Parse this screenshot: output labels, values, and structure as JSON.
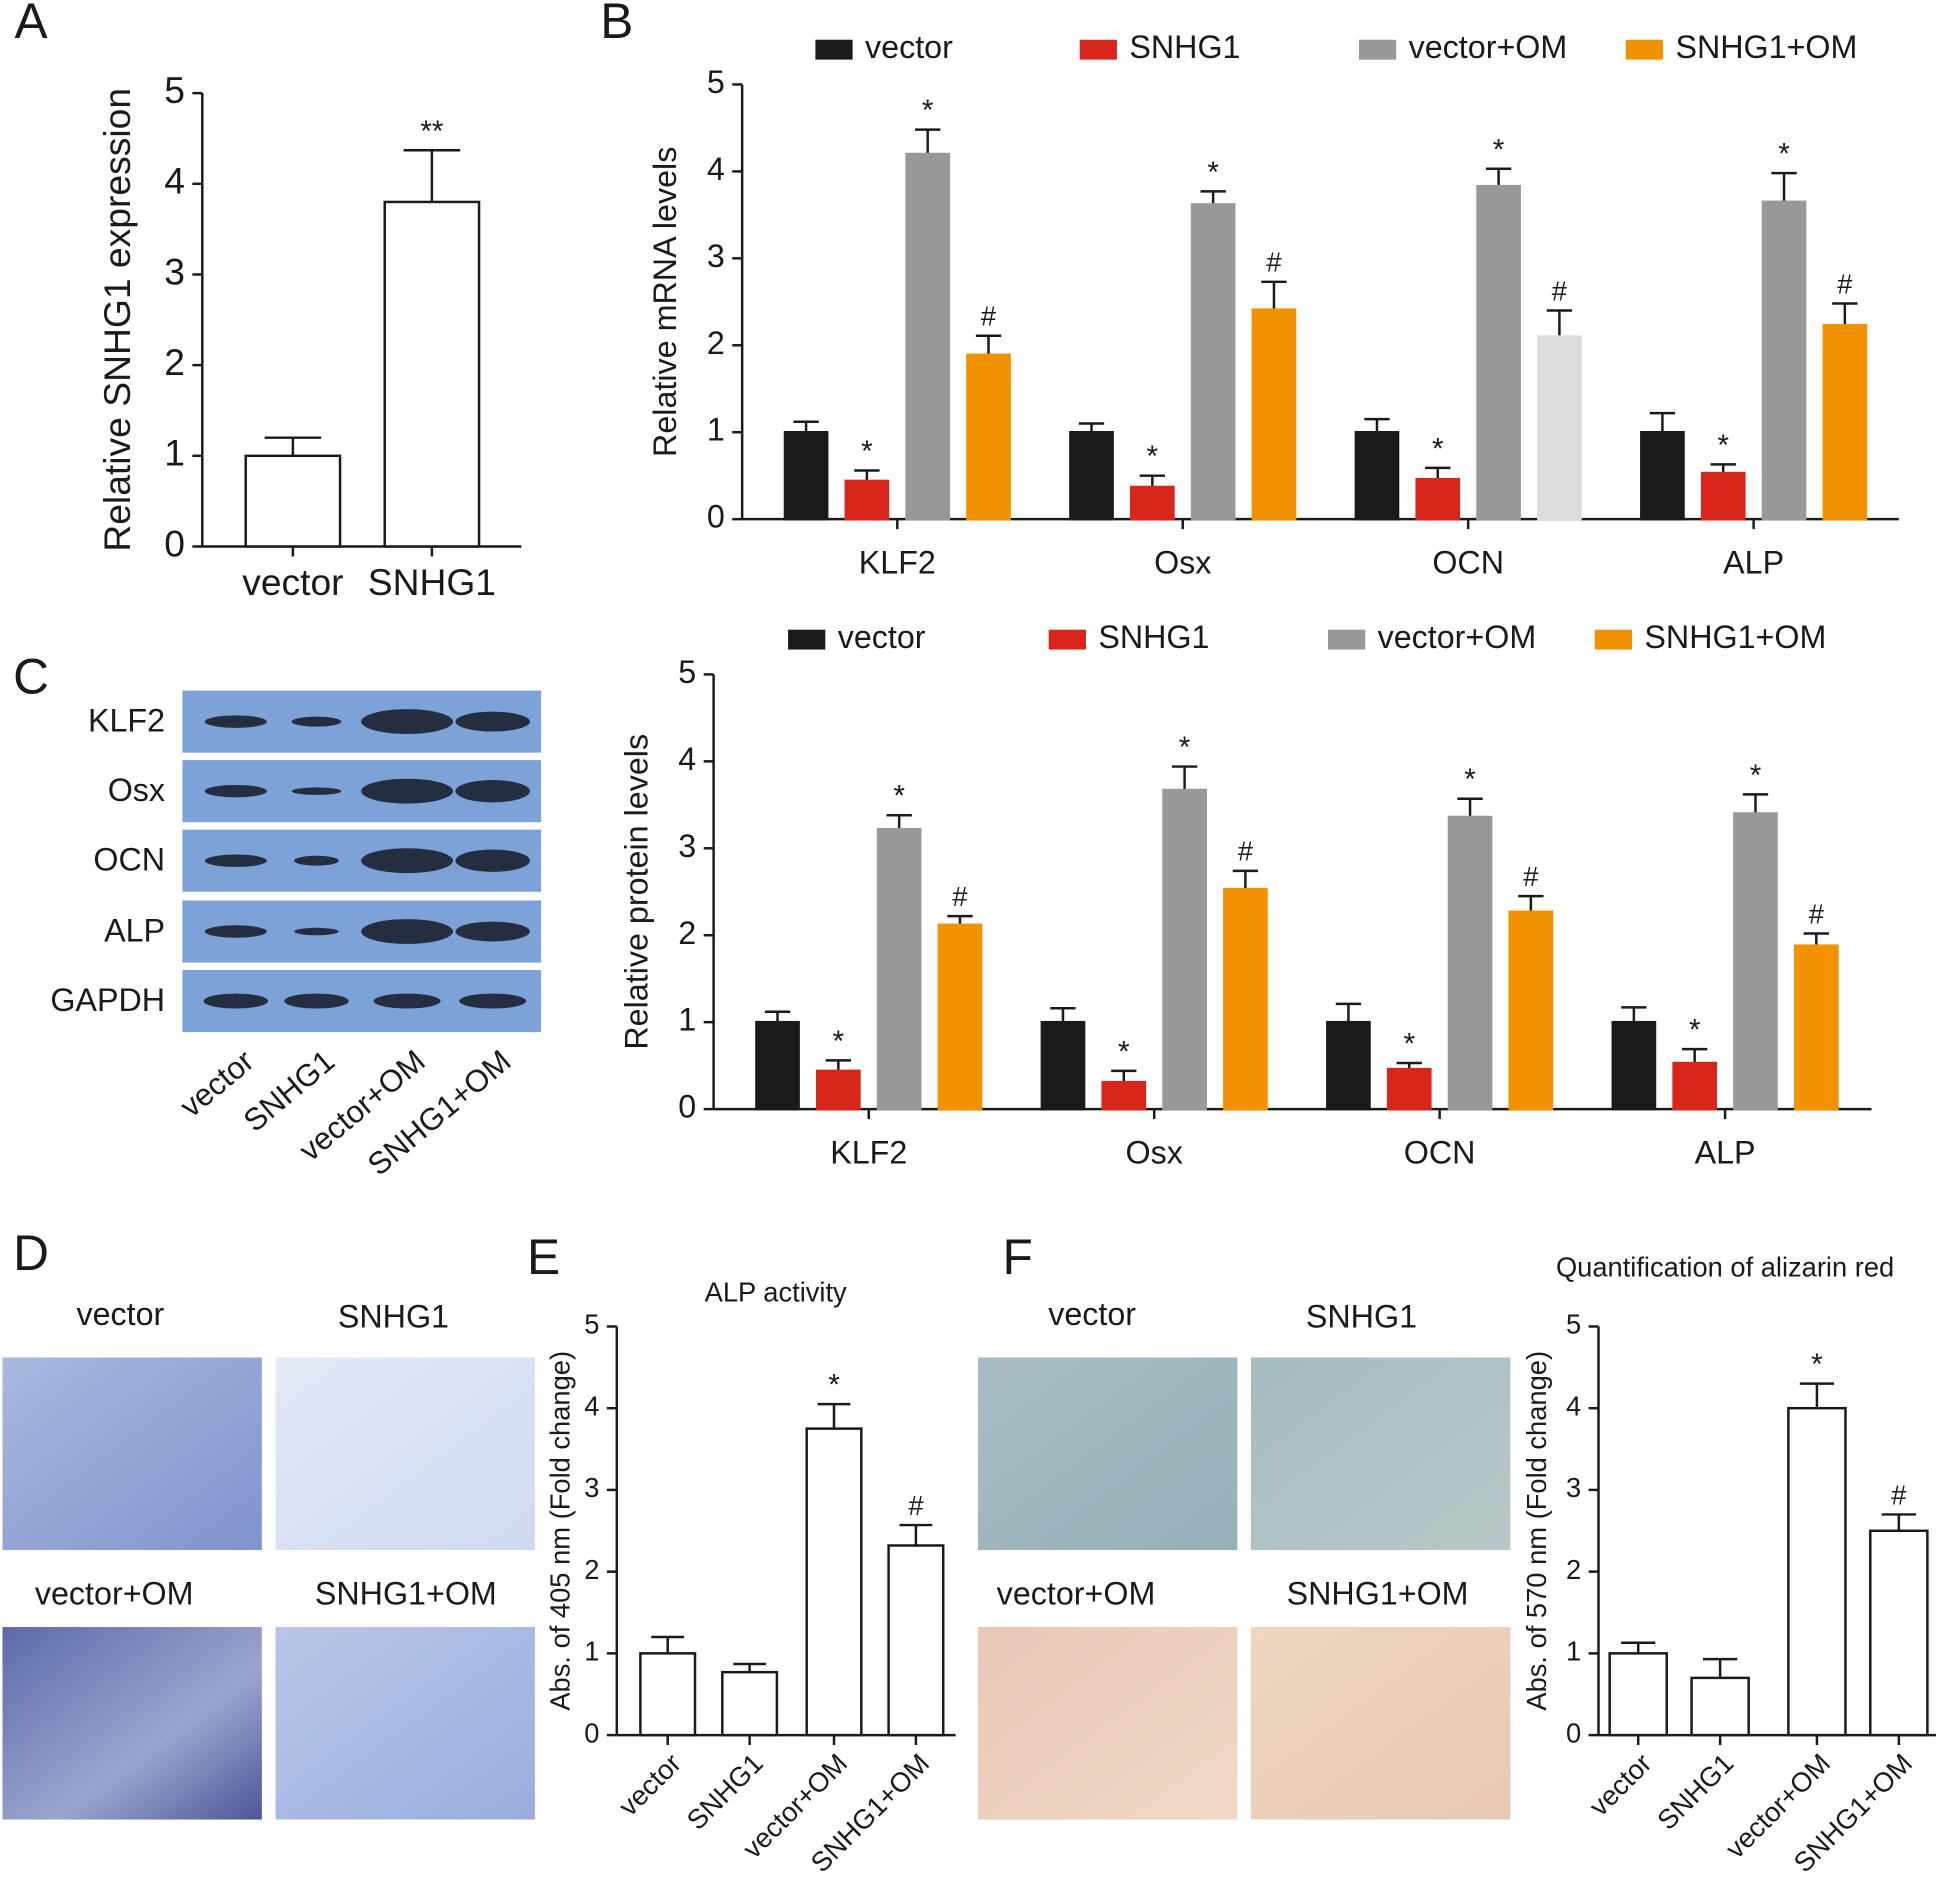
{
  "panel_labels": [
    "A",
    "B",
    "C",
    "D",
    "E",
    "F"
  ],
  "blot": {
    "rows": [
      "KLF2",
      "Osx",
      "OCN",
      "ALP",
      "GAPDH"
    ],
    "lanes": [
      "vector",
      "SNHG1",
      "vector+OM",
      "SNHG1+OM"
    ]
  },
  "alp_staining": {
    "labels": [
      "vector",
      "SNHG1",
      "vector+OM",
      "SNHG1+OM"
    ]
  },
  "alizarin_staining": {
    "labels": [
      "vector",
      "SNHG1",
      "vector+OM",
      "SNHG1+OM"
    ]
  },
  "chart_data": [
    {
      "type": "bar",
      "y_label": "Relative SNHG1 expression",
      "categories": [
        "vector",
        "SNHG1"
      ],
      "values": [
        1.0,
        3.8
      ],
      "errors": [
        0.2,
        0.57
      ],
      "annotations": [
        null,
        "**"
      ],
      "color": "#ffffff",
      "ylim": [
        0,
        5
      ],
      "yticks": [
        0,
        1,
        2,
        3,
        4,
        5
      ]
    },
    {
      "type": "grouped_bar",
      "y_label": "Relative mRNA levels",
      "categories": [
        "KLF2",
        "Osx",
        "OCN",
        "ALP"
      ],
      "series": [
        {
          "name": "vector",
          "color": "#1a1a1a",
          "values": [
            1.0,
            1.0,
            1.0,
            1.0
          ],
          "errors": [
            0.12,
            0.1,
            0.15,
            0.22
          ],
          "annotations": [
            null,
            null,
            null,
            null
          ]
        },
        {
          "name": "SNHG1",
          "color": "#d9261c",
          "values": [
            0.44,
            0.37,
            0.46,
            0.53
          ],
          "errors": [
            0.12,
            0.13,
            0.13,
            0.1
          ],
          "annotations": [
            "*",
            "*",
            "*",
            "*"
          ]
        },
        {
          "name": "vector+OM",
          "color": "#999999",
          "values": [
            4.2,
            3.62,
            3.83,
            3.65
          ],
          "errors": [
            0.28,
            0.15,
            0.2,
            0.33
          ],
          "annotations": [
            "*",
            "*",
            "*",
            "*"
          ]
        },
        {
          "name": "SNHG1+OM",
          "color": "#f39200",
          "colors": [
            "#f39200",
            "#f39200",
            "#dcdcdc",
            "#f39200"
          ],
          "values": [
            1.89,
            2.41,
            2.1,
            2.23
          ],
          "errors": [
            0.22,
            0.32,
            0.3,
            0.25
          ],
          "annotations": [
            "#",
            "#",
            "#",
            "#"
          ]
        }
      ],
      "ylim": [
        0,
        5
      ],
      "yticks": [
        0,
        1,
        2,
        3,
        4,
        5
      ],
      "legend": "top"
    },
    {
      "type": "grouped_bar",
      "y_label": "Relative protein levels",
      "categories": [
        "KLF2",
        "Osx",
        "OCN",
        "ALP"
      ],
      "series": [
        {
          "name": "vector",
          "color": "#1a1a1a",
          "values": [
            1.0,
            1.0,
            1.0,
            1.0
          ],
          "errors": [
            0.12,
            0.16,
            0.21,
            0.17
          ],
          "annotations": [
            null,
            null,
            null,
            null
          ]
        },
        {
          "name": "SNHG1",
          "color": "#d9261c",
          "values": [
            0.44,
            0.31,
            0.46,
            0.53
          ],
          "errors": [
            0.12,
            0.13,
            0.07,
            0.16
          ],
          "annotations": [
            "*",
            "*",
            "*",
            "*"
          ]
        },
        {
          "name": "vector+OM",
          "color": "#999999",
          "values": [
            3.22,
            3.67,
            3.36,
            3.4
          ],
          "errors": [
            0.16,
            0.27,
            0.21,
            0.22
          ],
          "annotations": [
            "*",
            "*",
            "*",
            "*"
          ]
        },
        {
          "name": "SNHG1+OM",
          "color": "#f39200",
          "values": [
            2.12,
            2.53,
            2.27,
            1.88
          ],
          "errors": [
            0.1,
            0.21,
            0.18,
            0.14
          ],
          "annotations": [
            "#",
            "#",
            "#",
            "#"
          ]
        }
      ],
      "ylim": [
        0,
        5
      ],
      "yticks": [
        0,
        1,
        2,
        3,
        4,
        5
      ],
      "legend": "top"
    },
    {
      "type": "bar",
      "title": "ALP activity",
      "y_label": "Abs. of 405 nm (Fold change)",
      "categories": [
        "vector",
        "SNHG1",
        "vector+OM",
        "SNHG1+OM"
      ],
      "values": [
        1.0,
        0.77,
        3.75,
        2.32
      ],
      "errors": [
        0.2,
        0.1,
        0.3,
        0.25
      ],
      "annotations": [
        null,
        null,
        "*",
        "#"
      ],
      "color": "#ffffff",
      "ylim": [
        0,
        5
      ],
      "yticks": [
        0,
        1,
        2,
        3,
        4,
        5
      ]
    },
    {
      "type": "bar",
      "title": "Quantification of alizarin red",
      "y_label": "Abs. of 570 nm (Fold change)",
      "categories": [
        "vector",
        "SNHG1",
        "vector+OM",
        "SNHG1+OM"
      ],
      "values": [
        1.0,
        0.7,
        4.0,
        2.5
      ],
      "errors": [
        0.13,
        0.23,
        0.3,
        0.2
      ],
      "annotations": [
        null,
        null,
        "*",
        "#"
      ],
      "color": "#ffffff",
      "ylim": [
        0,
        5
      ],
      "yticks": [
        0,
        1,
        2,
        3,
        4,
        5
      ]
    }
  ]
}
